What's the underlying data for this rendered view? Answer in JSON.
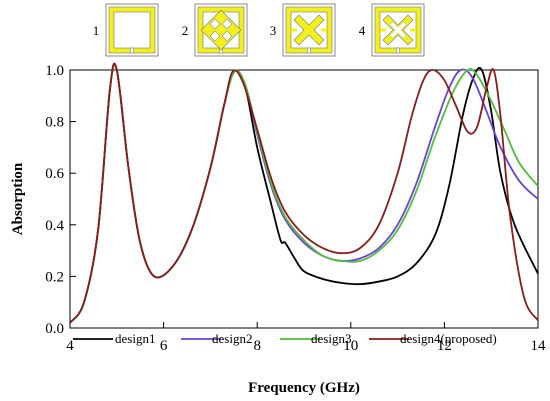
{
  "chart_data": {
    "type": "line",
    "title": "",
    "xlabel": "Frequency (GHz)",
    "ylabel": "Absorption",
    "xlim": [
      4,
      14
    ],
    "ylim": [
      0,
      1.0
    ],
    "xticks": [
      "4",
      "6",
      "8",
      "10",
      "12",
      "14"
    ],
    "yticks": [
      "0.0",
      "0.2",
      "0.4",
      "0.6",
      "0.8",
      "1.0"
    ],
    "grid": false,
    "legend_position": "bottom",
    "insets": [
      {
        "label": "1",
        "pattern": "ring"
      },
      {
        "label": "2",
        "pattern": "double-cross"
      },
      {
        "label": "3",
        "pattern": "cross"
      },
      {
        "label": "4",
        "pattern": "cross-outline"
      }
    ],
    "series": [
      {
        "name": "design1",
        "color": "#000000",
        "x": [
          4.0,
          4.3,
          4.6,
          4.85,
          5.0,
          5.25,
          5.5,
          5.8,
          6.2,
          6.6,
          7.0,
          7.3,
          7.52,
          7.75,
          8.0,
          8.3,
          8.5,
          8.6,
          8.8,
          9.0,
          9.4,
          9.8,
          10.2,
          10.6,
          11.0,
          11.4,
          11.8,
          12.1,
          12.4,
          12.62,
          12.8,
          13.0,
          13.2,
          13.5,
          14.0
        ],
        "y": [
          0.02,
          0.1,
          0.38,
          0.92,
          1.0,
          0.62,
          0.33,
          0.2,
          0.24,
          0.38,
          0.62,
          0.87,
          0.995,
          0.93,
          0.7,
          0.48,
          0.34,
          0.33,
          0.27,
          0.22,
          0.19,
          0.175,
          0.17,
          0.18,
          0.2,
          0.25,
          0.36,
          0.55,
          0.83,
          0.97,
          1.0,
          0.84,
          0.6,
          0.4,
          0.21
        ]
      },
      {
        "name": "design2",
        "color": "#6a40e0",
        "x": [
          4.0,
          4.3,
          4.6,
          4.85,
          5.0,
          5.25,
          5.5,
          5.8,
          6.2,
          6.6,
          7.0,
          7.3,
          7.52,
          7.75,
          8.0,
          8.3,
          8.6,
          9.0,
          9.4,
          9.8,
          10.2,
          10.6,
          11.0,
          11.4,
          11.8,
          12.1,
          12.35,
          12.6,
          12.9,
          13.2,
          13.6,
          14.0
        ],
        "y": [
          0.02,
          0.1,
          0.38,
          0.92,
          1.0,
          0.62,
          0.33,
          0.2,
          0.24,
          0.38,
          0.62,
          0.87,
          0.995,
          0.94,
          0.75,
          0.55,
          0.42,
          0.33,
          0.28,
          0.26,
          0.27,
          0.31,
          0.4,
          0.56,
          0.78,
          0.93,
          1.0,
          0.97,
          0.84,
          0.7,
          0.57,
          0.5
        ]
      },
      {
        "name": "design3",
        "color": "#4fbf3a",
        "x": [
          4.0,
          4.3,
          4.6,
          4.85,
          5.0,
          5.25,
          5.5,
          5.8,
          6.2,
          6.6,
          7.0,
          7.3,
          7.52,
          7.75,
          8.0,
          8.3,
          8.6,
          9.0,
          9.4,
          9.8,
          10.2,
          10.6,
          11.0,
          11.4,
          11.8,
          12.2,
          12.5,
          12.7,
          13.0,
          13.3,
          13.6,
          14.0
        ],
        "y": [
          0.02,
          0.1,
          0.38,
          0.92,
          1.0,
          0.62,
          0.33,
          0.2,
          0.24,
          0.38,
          0.62,
          0.87,
          0.995,
          0.94,
          0.76,
          0.56,
          0.43,
          0.34,
          0.28,
          0.26,
          0.26,
          0.3,
          0.38,
          0.53,
          0.74,
          0.92,
          1.0,
          0.98,
          0.88,
          0.76,
          0.64,
          0.55
        ]
      },
      {
        "name": "design4(proposed)",
        "color": "#8b1a1a",
        "x": [
          4.0,
          4.3,
          4.6,
          4.85,
          5.0,
          5.25,
          5.5,
          5.8,
          6.2,
          6.6,
          7.0,
          7.3,
          7.48,
          7.7,
          8.0,
          8.3,
          8.6,
          9.0,
          9.4,
          9.8,
          10.2,
          10.6,
          11.0,
          11.3,
          11.55,
          11.75,
          12.0,
          12.25,
          12.5,
          12.7,
          12.9,
          13.05,
          13.2,
          13.4,
          13.7,
          14.0
        ],
        "y": [
          0.02,
          0.1,
          0.38,
          0.92,
          1.0,
          0.62,
          0.33,
          0.2,
          0.24,
          0.38,
          0.62,
          0.87,
          0.995,
          0.95,
          0.77,
          0.58,
          0.45,
          0.36,
          0.31,
          0.29,
          0.31,
          0.4,
          0.6,
          0.82,
          0.96,
          1.0,
          0.96,
          0.86,
          0.76,
          0.78,
          0.93,
          1.0,
          0.82,
          0.44,
          0.12,
          0.03
        ]
      }
    ]
  }
}
